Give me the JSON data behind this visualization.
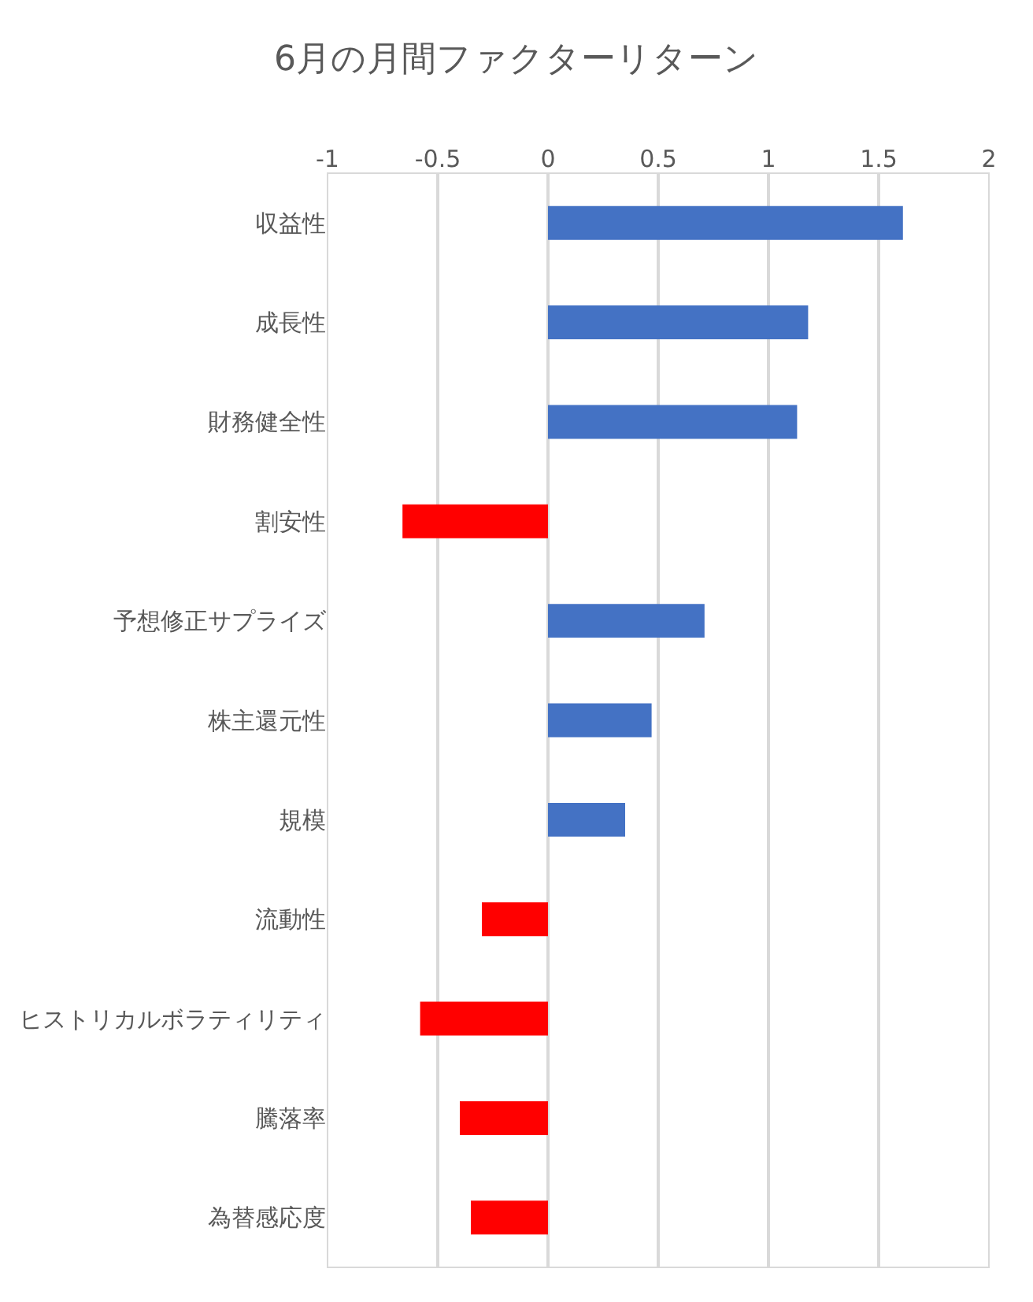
{
  "chart_data": {
    "type": "bar",
    "orientation": "horizontal",
    "title": "6月の月間ファクターリターン",
    "categories": [
      "収益性",
      "成長性",
      "財務健全性",
      "割安性",
      "予想修正サプライズ",
      "株主還元性",
      "規模",
      "流動性",
      "ヒストリカルボラティリティ",
      "騰落率",
      "為替感応度"
    ],
    "values": [
      1.61,
      1.18,
      1.13,
      -0.66,
      0.71,
      0.47,
      0.35,
      -0.3,
      -0.58,
      -0.4,
      -0.35
    ],
    "colors": [
      "#4472c4",
      "#4472c4",
      "#4472c4",
      "#ff0000",
      "#4472c4",
      "#4472c4",
      "#4472c4",
      "#ff0000",
      "#ff0000",
      "#ff0000",
      "#ff0000"
    ],
    "xlim": [
      -1,
      2
    ],
    "xticks": [
      -1,
      -0.5,
      0,
      0.5,
      1,
      1.5,
      2
    ],
    "grid": "x"
  }
}
